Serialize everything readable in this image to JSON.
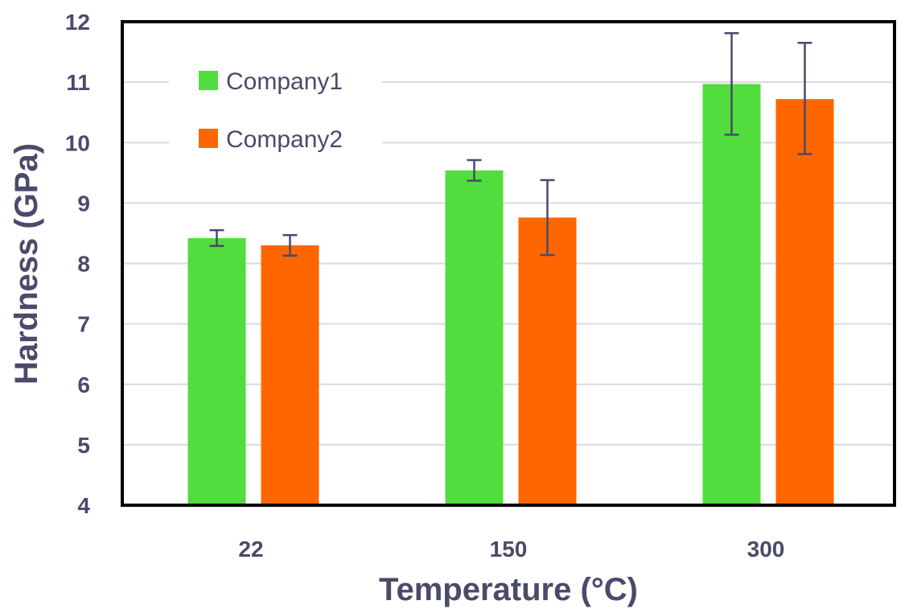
{
  "chart_data": {
    "type": "bar",
    "categories": [
      "22",
      "150",
      "300"
    ],
    "series": [
      {
        "name": "Company1",
        "color": "#52dd3e",
        "values": [
          8.42,
          9.54,
          10.97
        ],
        "error_low": [
          8.29,
          9.37,
          10.13
        ],
        "error_high": [
          8.55,
          9.71,
          11.81
        ]
      },
      {
        "name": "Company2",
        "color": "#ff6600",
        "values": [
          8.3,
          8.76,
          10.72
        ],
        "error_low": [
          8.13,
          8.14,
          9.81
        ],
        "error_high": [
          8.47,
          9.38,
          11.65
        ]
      }
    ],
    "title": "",
    "xlabel": "Temperature (°C)",
    "ylabel": "Hardness (GPa)",
    "ylim": [
      4,
      12
    ],
    "yticks": [
      "4",
      "5",
      "6",
      "7",
      "8",
      "9",
      "10",
      "11",
      "12"
    ],
    "grid": true,
    "legend_position": "top-left",
    "gridline_color": "#d9d9e3",
    "axis_color": "#000000",
    "errorbar_color": "#4a4a6a"
  }
}
